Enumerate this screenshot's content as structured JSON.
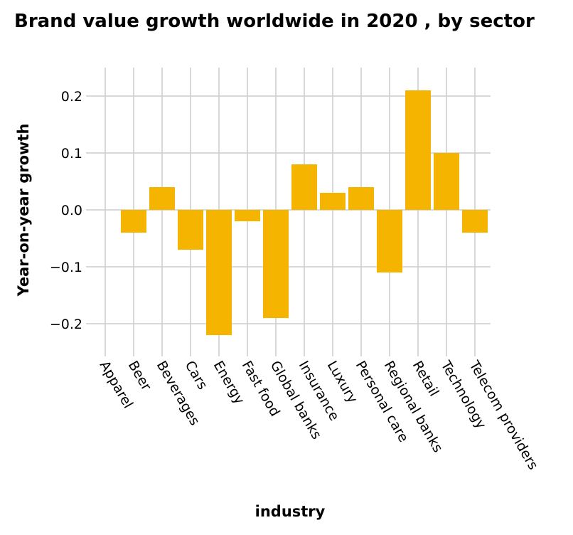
{
  "chart_data": {
    "type": "bar",
    "title": "Brand value growth worldwide in 2020 , by sector",
    "xlabel": "industry",
    "ylabel": "Year-on-year growth",
    "categories": [
      "Apparel",
      "Beer",
      "Beverages",
      "Cars",
      "Energy",
      "Fast food",
      "Global banks",
      "Insurance",
      "Luxury",
      "Personal care",
      "Regional banks",
      "Retail",
      "Technology",
      "Telecom providers"
    ],
    "values": [
      0.0,
      -0.04,
      0.04,
      -0.07,
      -0.22,
      -0.02,
      -0.19,
      0.08,
      0.03,
      0.04,
      -0.11,
      0.21,
      0.1,
      -0.04
    ],
    "ylim": [
      -0.25,
      0.25
    ],
    "yticks": [
      0.2,
      0.1,
      0.0,
      -0.1,
      -0.2
    ],
    "ytick_labels": [
      "0.2",
      "0.1",
      "0.0",
      "−0.1",
      "−0.2"
    ],
    "grid": true,
    "bar_color": "#f5b400",
    "grid_color": "#cccccc"
  }
}
